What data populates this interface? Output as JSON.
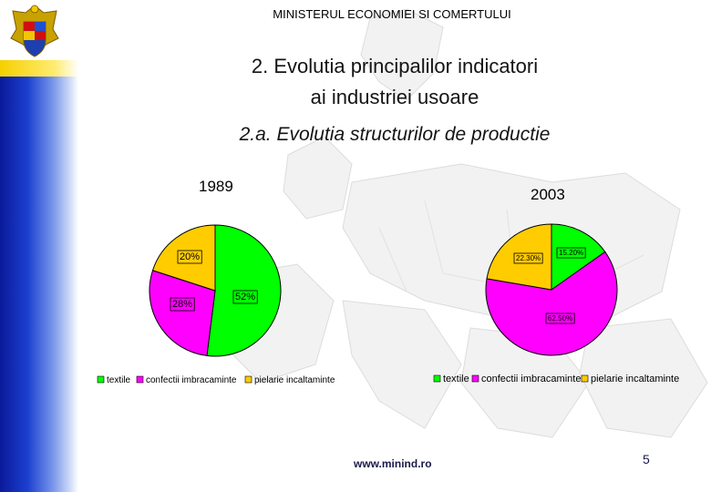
{
  "header": {
    "ministry": "MINISTERUL ECONOMIEI SI COMERTULUI",
    "title_line1": "2. Evolutia principalilor indicatori",
    "title_line2": "ai industriei usoare",
    "subtitle": "2.a. Evolutia structurilor de productie"
  },
  "footer": {
    "website": "www.minind.ro",
    "page_number": "5"
  },
  "colors": {
    "textile": "#00ff00",
    "confectii": "#ff00ff",
    "pielarie": "#ffcc00"
  },
  "chart_data": [
    {
      "type": "pie",
      "title": "1989",
      "categories": [
        "textile",
        "confectii imbracaminte",
        "pielarie incaltaminte"
      ],
      "values": [
        52,
        28,
        20
      ],
      "data_labels": [
        "52%",
        "28%",
        "20%"
      ],
      "legend_position": "bottom"
    },
    {
      "type": "pie",
      "title": "2003",
      "categories": [
        "textile",
        "confectii imbracaminte",
        "pielarie incaltaminte"
      ],
      "values": [
        15.2,
        62.5,
        22.3
      ],
      "data_labels": [
        "15.20%",
        "62.50%",
        "22.30%"
      ],
      "legend_position": "bottom"
    }
  ]
}
